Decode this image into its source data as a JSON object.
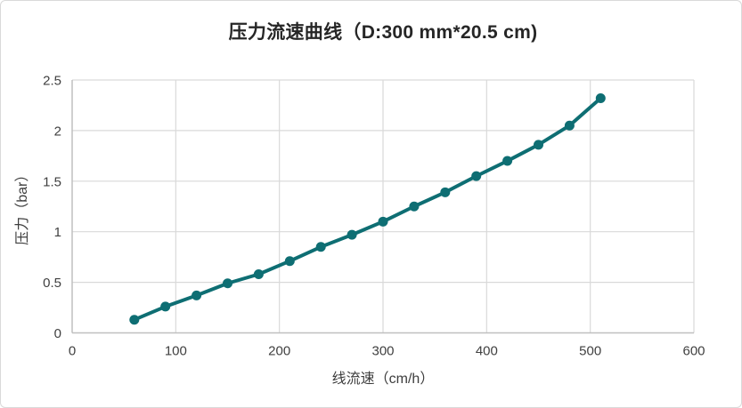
{
  "window": {
    "background_color": "#ffffff",
    "border_color": "#d9d9d9"
  },
  "chart_data": {
    "type": "line",
    "title": "压力流速曲线（D:300 mm*20.5 cm)",
    "xlabel": "线流速（cm/h）",
    "ylabel": "压力（bar）",
    "x": [
      60,
      90,
      120,
      150,
      180,
      210,
      240,
      270,
      300,
      330,
      360,
      390,
      420,
      450,
      480,
      510
    ],
    "y": [
      0.13,
      0.26,
      0.37,
      0.49,
      0.58,
      0.71,
      0.85,
      0.97,
      1.1,
      1.25,
      1.39,
      1.55,
      1.7,
      1.86,
      2.05,
      2.32
    ],
    "xlim": [
      0,
      600
    ],
    "ylim": [
      0,
      2.5
    ],
    "x_ticks": [
      0,
      100,
      200,
      300,
      400,
      500,
      600
    ],
    "x_tick_labels": [
      "0",
      "100",
      "200",
      "300",
      "400",
      "500",
      "600"
    ],
    "y_ticks": [
      0,
      0.5,
      1,
      1.5,
      2,
      2.5
    ],
    "y_tick_labels": [
      "0",
      "0.5",
      "1",
      "1.5",
      "2",
      "2.5"
    ],
    "grid": true,
    "legend": "none",
    "line_color": "#0e6e73",
    "marker": "circle",
    "marker_radius": 5.5,
    "line_width": 4,
    "gridline_color": "#d9d9d9",
    "axis_line_color": "#bfbfbf",
    "tick_label_color": "#404040",
    "axis_title_color": "#3d3d3d",
    "title_color": "#262626"
  }
}
